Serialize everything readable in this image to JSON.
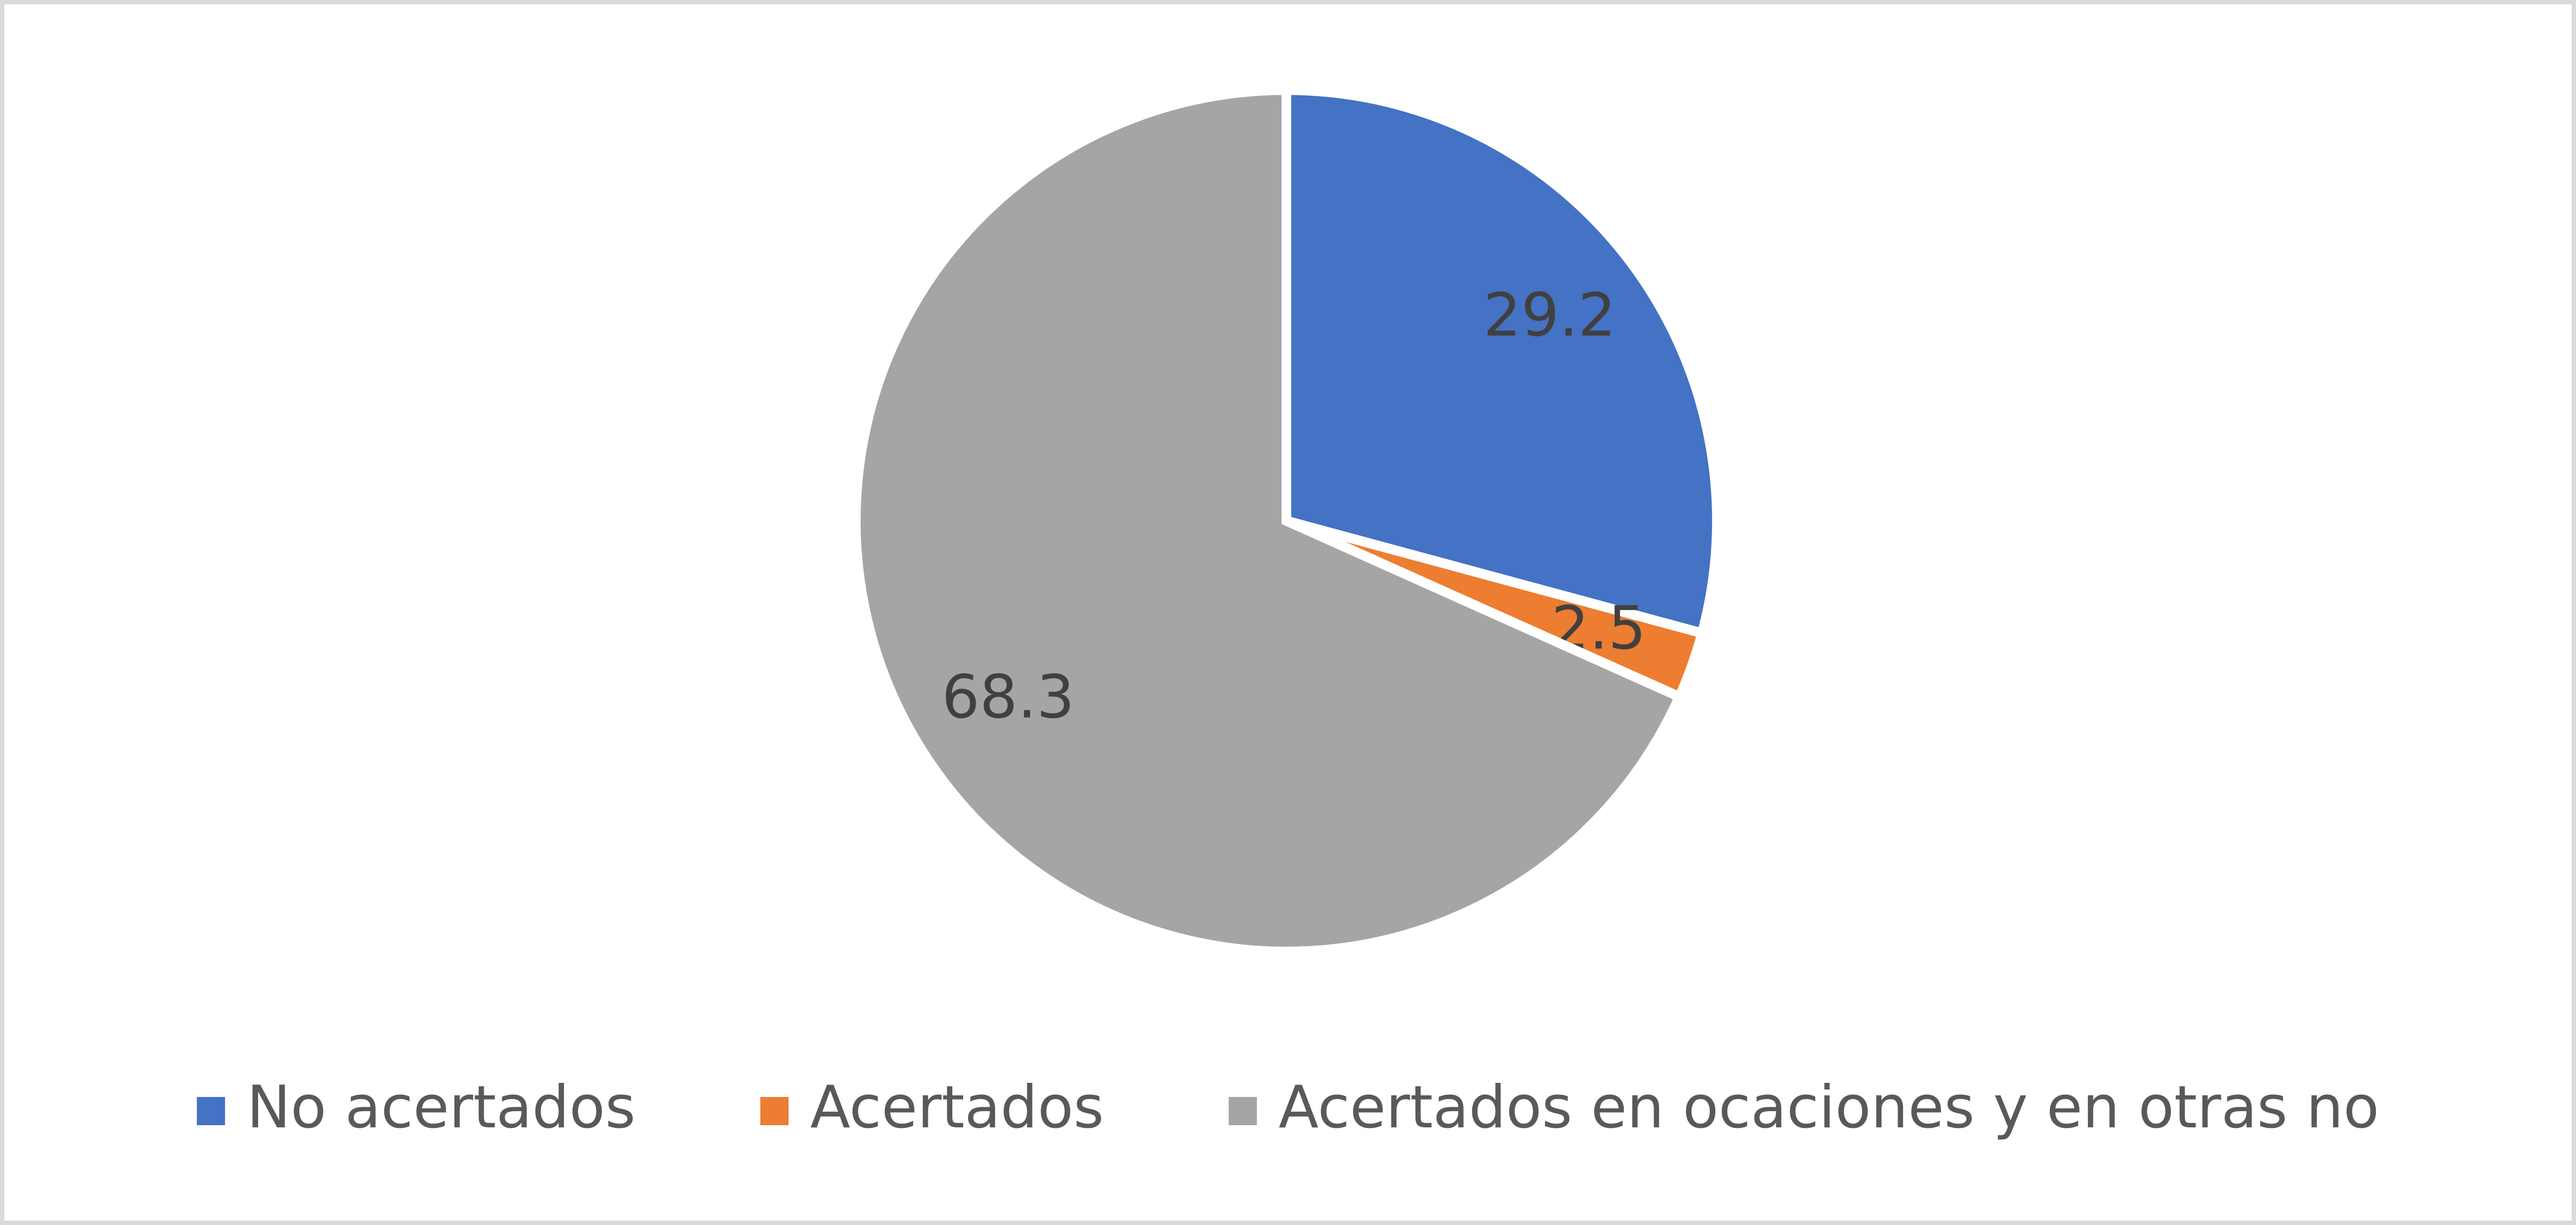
{
  "chart_data": {
    "type": "pie",
    "categories": [
      "No acertados",
      "Acertados",
      "Acertados en ocaciones y en otras no"
    ],
    "values": [
      29.2,
      2.5,
      68.3
    ],
    "colors": [
      "#4472c4",
      "#ed7d31",
      "#a5a5a5"
    ],
    "legend": "bottom"
  }
}
